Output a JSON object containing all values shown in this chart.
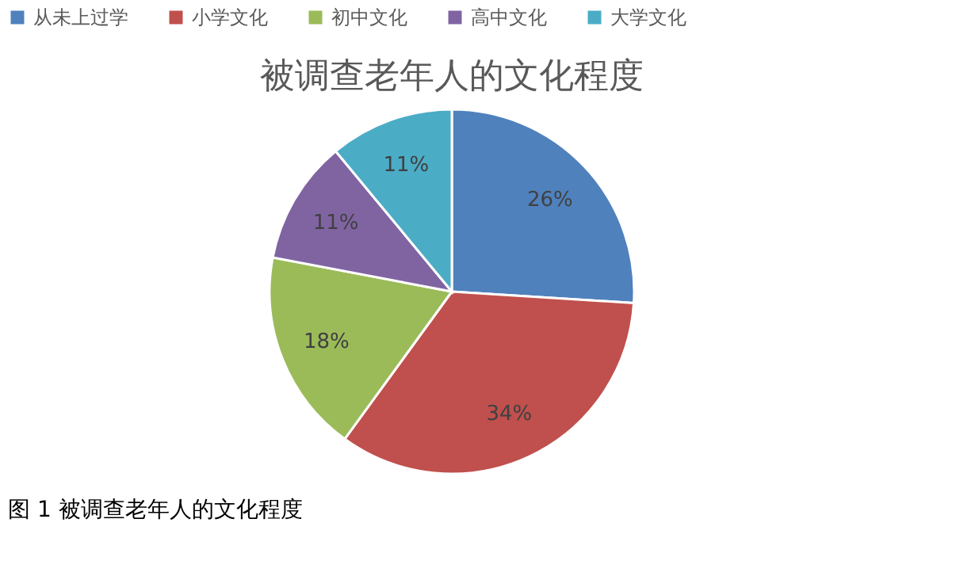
{
  "chart_data": {
    "type": "pie",
    "title": "被调查老年人的文化程度",
    "categories": [
      "从未上过学",
      "小学文化",
      "初中文化",
      "高中文化",
      "大学文化"
    ],
    "values": [
      26,
      34,
      18,
      11,
      11
    ],
    "value_labels": [
      "26%",
      "34%",
      "18%",
      "11%",
      "11%"
    ],
    "colors": [
      "#4f81bd",
      "#c0504d",
      "#9bbb59",
      "#8064a2",
      "#4bacc6"
    ],
    "legend": "top",
    "annotations": [
      "图 1 被调查老年人的文化程度"
    ]
  }
}
